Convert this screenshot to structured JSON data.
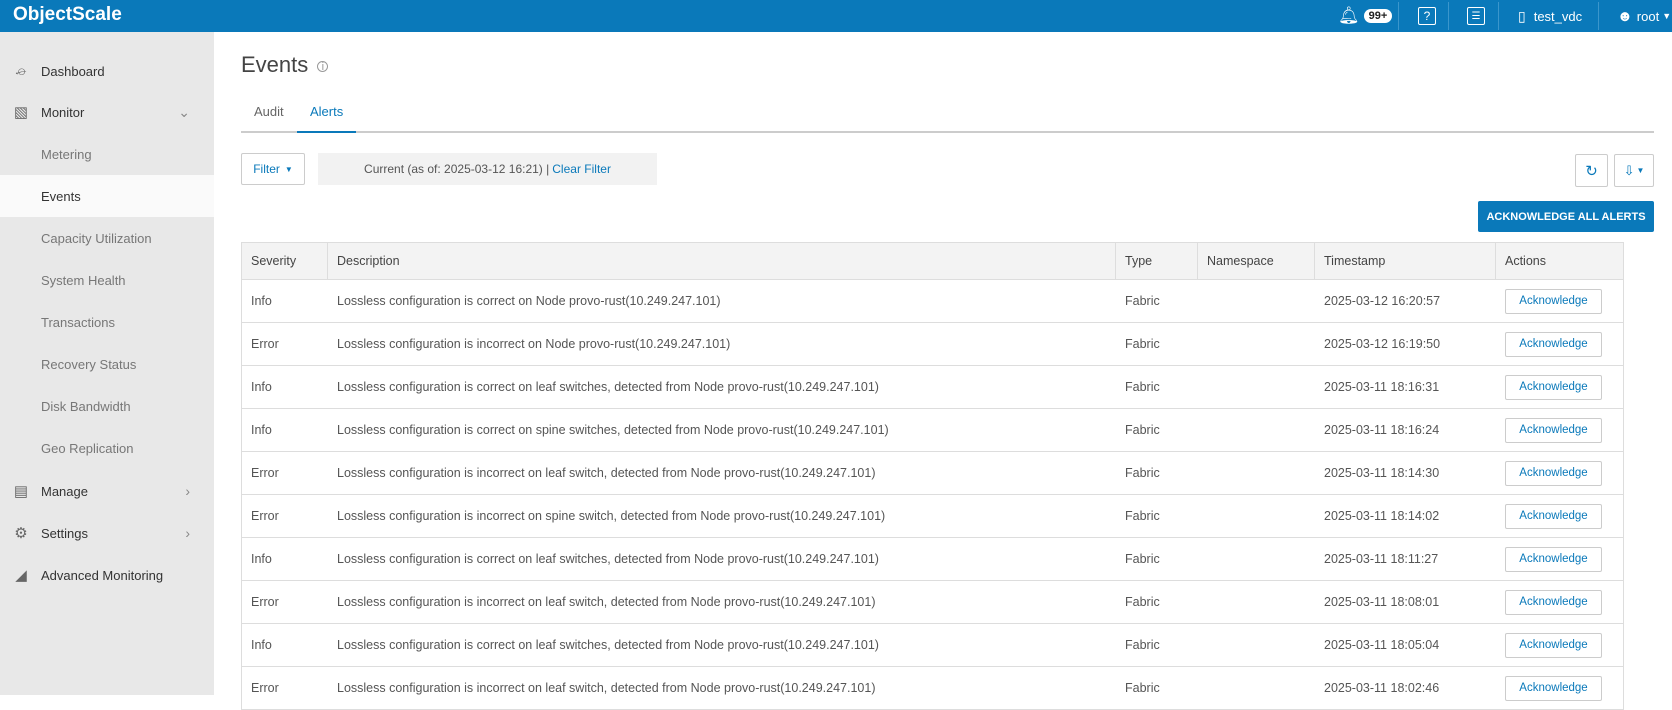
{
  "app": {
    "title": "ObjectScale"
  },
  "topbar": {
    "notifications_badge": "99+",
    "vdc": "test_vdc",
    "user": "root"
  },
  "sidebar": {
    "items": [
      {
        "label": "Dashboard",
        "icon": "dashboard-icon"
      },
      {
        "label": "Monitor",
        "icon": "monitor-icon",
        "expanded": true
      },
      {
        "label": "Metering"
      },
      {
        "label": "Events",
        "active": true
      },
      {
        "label": "Capacity Utilization"
      },
      {
        "label": "System Health"
      },
      {
        "label": "Transactions"
      },
      {
        "label": "Recovery Status"
      },
      {
        "label": "Disk Bandwidth"
      },
      {
        "label": "Geo Replication"
      },
      {
        "label": "Manage",
        "icon": "manage-icon"
      },
      {
        "label": "Settings",
        "icon": "gear-icon"
      },
      {
        "label": "Advanced Monitoring",
        "icon": "area-chart-icon"
      }
    ]
  },
  "page": {
    "title": "Events",
    "tabs": [
      {
        "label": "Audit"
      },
      {
        "label": "Alerts",
        "active": true
      }
    ]
  },
  "filter": {
    "button": "Filter",
    "status": "Current (as of: 2025-03-12 16:21) |",
    "clear": "Clear Filter"
  },
  "actions": {
    "ack_all": "ACKNOWLEDGE ALL ALERTS"
  },
  "table": {
    "columns": [
      "Severity",
      "Description",
      "Type",
      "Namespace",
      "Timestamp",
      "Actions"
    ],
    "ack_label": "Acknowledge",
    "rows": [
      {
        "severity": "Info",
        "description": "Lossless configuration is correct on Node provo-rust(10.249.247.101)",
        "type": "Fabric",
        "namespace": "",
        "timestamp": "2025-03-12 16:20:57"
      },
      {
        "severity": "Error",
        "description": "Lossless configuration is incorrect on Node provo-rust(10.249.247.101)",
        "type": "Fabric",
        "namespace": "",
        "timestamp": "2025-03-12 16:19:50"
      },
      {
        "severity": "Info",
        "description": "Lossless configuration is correct on leaf switches, detected from Node provo-rust(10.249.247.101)",
        "type": "Fabric",
        "namespace": "",
        "timestamp": "2025-03-11 18:16:31"
      },
      {
        "severity": "Info",
        "description": "Lossless configuration is correct on spine switches, detected from Node provo-rust(10.249.247.101)",
        "type": "Fabric",
        "namespace": "",
        "timestamp": "2025-03-11 18:16:24"
      },
      {
        "severity": "Error",
        "description": "Lossless configuration is incorrect on leaf switch, detected from Node provo-rust(10.249.247.101)",
        "type": "Fabric",
        "namespace": "",
        "timestamp": "2025-03-11 18:14:30"
      },
      {
        "severity": "Error",
        "description": "Lossless configuration is incorrect on spine switch, detected from Node provo-rust(10.249.247.101)",
        "type": "Fabric",
        "namespace": "",
        "timestamp": "2025-03-11 18:14:02"
      },
      {
        "severity": "Info",
        "description": "Lossless configuration is correct on leaf switches, detected from Node provo-rust(10.249.247.101)",
        "type": "Fabric",
        "namespace": "",
        "timestamp": "2025-03-11 18:11:27"
      },
      {
        "severity": "Error",
        "description": "Lossless configuration is incorrect on leaf switch, detected from Node provo-rust(10.249.247.101)",
        "type": "Fabric",
        "namespace": "",
        "timestamp": "2025-03-11 18:08:01"
      },
      {
        "severity": "Info",
        "description": "Lossless configuration is correct on leaf switches, detected from Node provo-rust(10.249.247.101)",
        "type": "Fabric",
        "namespace": "",
        "timestamp": "2025-03-11 18:05:04"
      },
      {
        "severity": "Error",
        "description": "Lossless configuration is incorrect on leaf switch, detected from Node provo-rust(10.249.247.101)",
        "type": "Fabric",
        "namespace": "",
        "timestamp": "2025-03-11 18:02:46"
      }
    ]
  },
  "colors": {
    "brand": "#0a79ba",
    "sidebar": "#e8e8e8"
  }
}
